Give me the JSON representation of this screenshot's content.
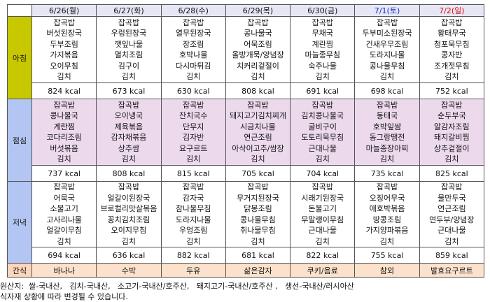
{
  "days": [
    {
      "label": "6/26(월)",
      "color": "#111111"
    },
    {
      "label": "6/27(화)",
      "color": "#111111"
    },
    {
      "label": "6/28(수)",
      "color": "#111111"
    },
    {
      "label": "6/29(목)",
      "color": "#111111"
    },
    {
      "label": "6/30(금)",
      "color": "#111111"
    },
    {
      "label": "7/1(토)",
      "color": "#1a2bd6"
    },
    {
      "label": "7/2(일)",
      "color": "#e01010"
    }
  ],
  "meals": {
    "breakfast": {
      "label": "아침",
      "menus": [
        [
          "잡곡밥",
          "버섯된장국",
          "두부조림",
          "가지볶음",
          "오이무침",
          "김치"
        ],
        [
          "잡곡밥",
          "우렁된장국",
          "깻잎나물",
          "멸치조림",
          "김구이",
          "김치"
        ],
        [
          "잡곡밥",
          "열무된장국",
          "장조림",
          "호박나물",
          "다시마튀김",
          "김치"
        ],
        [
          "잡곡밥",
          "콩나물국",
          "어묵조림",
          "올방개묵/양념장",
          "치커리겉절이",
          "김치"
        ],
        [
          "잡곡밥",
          "무채국",
          "계란찜",
          "마늘종무침",
          "숙주나물",
          "김치"
        ],
        [
          "잡곡밥",
          "두부미소된장국",
          "건새우무조림",
          "도라지나물",
          "콩나물무침",
          "김치"
        ],
        [
          "잡곡밥",
          "황태무국",
          "청포묵무침",
          "콩자반",
          "조개젓무침",
          "김치"
        ]
      ],
      "kcal": [
        "824 kcal",
        "673 kcal",
        "630 kcal",
        "808 kcal",
        "691 kcal",
        "698 kcal",
        "752 kcal"
      ]
    },
    "lunch": {
      "label": "점심",
      "menus": [
        [
          "잡곡밥",
          "콩나물국",
          "계란찜",
          "코다리조림",
          "버섯볶음",
          "김치"
        ],
        [
          "잡곡밥",
          "오이냉국",
          "제육볶음",
          "감자채볶음",
          "상추쌈",
          "김치"
        ],
        [
          "잡곡밥",
          "잔치국수",
          "단무지",
          "김자반",
          "요구르트",
          "김치"
        ],
        [
          "잡곡밥",
          "돼지고기김치찌개",
          "시금치나물",
          "연근조림",
          "아삭이고추/쌈장",
          "김치"
        ],
        [
          "잡곡밥",
          "김치콩나물국",
          "굴비구이",
          "도토리묵무침",
          "근대나물",
          "김치"
        ],
        [
          "잡곡밥",
          "동태국",
          "호박잎쌈",
          "동그랑땡전",
          "마늘종장아찌",
          "김치"
        ],
        [
          "잡곡밥",
          "순두부국",
          "알감자조림",
          "돼지갈비찜",
          "상추겉절이",
          "김치"
        ]
      ],
      "kcal": [
        "737 kcal",
        "808 kcal",
        "815 kcal",
        "705 kcal",
        "704 kcal",
        "735 kcal",
        "825 kcal"
      ]
    },
    "dinner": {
      "label": "저녁",
      "menus": [
        [
          "잡곡밥",
          "어묵국",
          "소불고기",
          "고사리나물",
          "얼갈이무침",
          "김치"
        ],
        [
          "잡곡밥",
          "얼갈이된장국",
          "브로컬리맛살볶음",
          "꽁치김치조림",
          "오이지무침",
          "김치"
        ],
        [
          "잡곡밥",
          "감자국",
          "참나물무침",
          "도라지나물",
          "우엉조림",
          "김치"
        ],
        [
          "잡곡밥",
          "무거지된장국",
          "닭봉조림",
          "콩나물무침",
          "취나물무침",
          "김치"
        ],
        [
          "잡곡밥",
          "시래기된장국",
          "돈불고기",
          "무말랭이무침",
          "근대나물",
          "김치"
        ],
        [
          "잡곡밥",
          "오징어무국",
          "애호박볶음",
          "땅콩조림",
          "가지양파볶음",
          "김치"
        ],
        [
          "잡곡밥",
          "물만두국",
          "연근조림",
          "연두부/양념장",
          "근대나물",
          "김치"
        ]
      ],
      "kcal": [
        "694 kcal",
        "636 kcal",
        "882 kcal",
        "681 kcal",
        "822 kcal",
        "755 kcal",
        "859 kcal"
      ]
    },
    "snack": {
      "label": "간식",
      "items": [
        "바나나",
        "수박",
        "두유",
        "삶은감자",
        "쿠키/음료",
        "참외",
        "발효요구르트"
      ]
    }
  },
  "footer": {
    "origin": "원산지:  쌀-국내산,   김치-국내산,   소고기-국내산/호주산,   돼지고기-국내산/호주산 ,   생선-국내산/러시아산",
    "notice": "식자재 상황에 따라 변경될 수 있습니다."
  },
  "colors": {
    "breakfast_label": "#c8c800",
    "lunch_dinner_label": "#b3c5f2",
    "snack": "#fce2cd",
    "lunch_menu": "#ecdaec",
    "header": "#e6e6f4"
  }
}
